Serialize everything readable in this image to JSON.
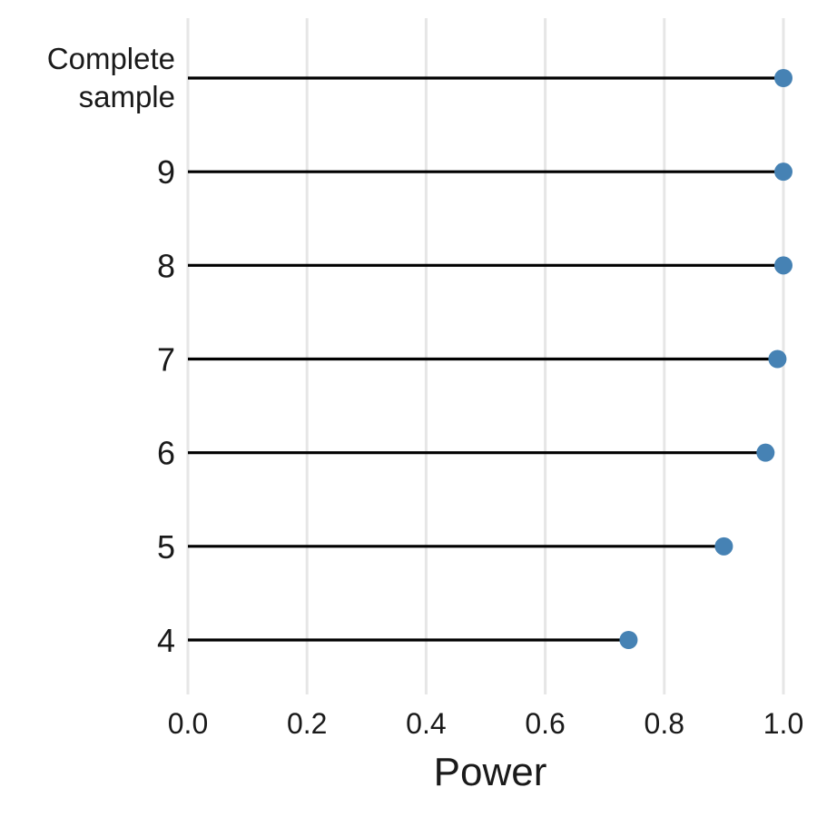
{
  "chart_data": {
    "type": "lollipop",
    "title": "",
    "xlabel": "Power",
    "ylabel": "",
    "xlim": [
      0.0,
      1.0
    ],
    "x_ticks": [
      "0.0",
      "0.2",
      "0.4",
      "0.6",
      "0.8",
      "1.0"
    ],
    "x_tick_values": [
      0.0,
      0.2,
      0.4,
      0.6,
      0.8,
      1.0
    ],
    "grid": true,
    "categories": [
      {
        "label": "Complete sample",
        "label_lines": [
          "Complete",
          "sample"
        ],
        "value": 1.0
      },
      {
        "label": "9",
        "label_lines": [
          "9"
        ],
        "value": 1.0
      },
      {
        "label": "8",
        "label_lines": [
          "8"
        ],
        "value": 1.0
      },
      {
        "label": "7",
        "label_lines": [
          "7"
        ],
        "value": 0.99
      },
      {
        "label": "6",
        "label_lines": [
          "6"
        ],
        "value": 0.97
      },
      {
        "label": "5",
        "label_lines": [
          "5"
        ],
        "value": 0.9
      },
      {
        "label": "4",
        "label_lines": [
          "4"
        ],
        "value": 0.74
      }
    ],
    "colors": {
      "point": "#4682b4",
      "stem": "#000000",
      "grid": "#e6e6e6",
      "text": "#1a1a1a"
    }
  }
}
